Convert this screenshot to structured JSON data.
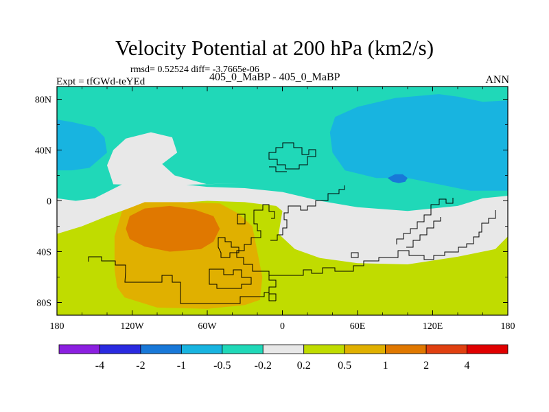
{
  "chart_data": {
    "type": "heatmap",
    "title": "Velocity Potential at 200 hPa (km2/s)",
    "stats": "rmsd= 0.52524 diff= -3.7665e-06",
    "left_label": "Expt = tfGWd-teYEd",
    "center_label": "405_0_MaBP - 405_0_MaBP",
    "right_label": "ANN",
    "xlabel": "",
    "ylabel": "",
    "xlim": [
      -180,
      180
    ],
    "ylim": [
      -90,
      90
    ],
    "x_ticks": [
      {
        "value": -180,
        "label": "180"
      },
      {
        "value": -120,
        "label": "120W"
      },
      {
        "value": -60,
        "label": "60W"
      },
      {
        "value": 0,
        "label": "0"
      },
      {
        "value": 60,
        "label": "60E"
      },
      {
        "value": 120,
        "label": "120E"
      },
      {
        "value": 180,
        "label": "180"
      }
    ],
    "y_ticks": [
      {
        "value": 80,
        "label": "80N"
      },
      {
        "value": 40,
        "label": "40N"
      },
      {
        "value": 0,
        "label": "0"
      },
      {
        "value": -40,
        "label": "40S"
      },
      {
        "value": -80,
        "label": "80S"
      }
    ],
    "colorbar": {
      "levels": [
        "-4",
        "-2",
        "-1",
        "-0.5",
        "-0.2",
        "0.2",
        "0.5",
        "1",
        "2",
        "4"
      ],
      "colors": [
        "#8b1fe0",
        "#2a2ae0",
        "#1878d8",
        "#18b4e0",
        "#20d8b8",
        "#e8e8e8",
        "#c0dc00",
        "#e0b000",
        "#e07800",
        "#e04010",
        "#e00000"
      ]
    },
    "regions": [
      {
        "name": "background",
        "range": "-0.2 to 0.2",
        "color": "#e8e8e8",
        "points": [
          [
            -180,
            90
          ],
          [
            180,
            90
          ],
          [
            180,
            -90
          ],
          [
            -180,
            -90
          ]
        ]
      },
      {
        "name": "northern-teal-band",
        "range": "-0.5 to -0.2",
        "color": "#20d8b8",
        "points": [
          [
            -180,
            90
          ],
          [
            180,
            90
          ],
          [
            180,
            4
          ],
          [
            160,
            2
          ],
          [
            140,
            -4
          ],
          [
            100,
            -8
          ],
          [
            60,
            -5
          ],
          [
            30,
            0
          ],
          [
            0,
            7
          ],
          [
            -30,
            10
          ],
          [
            -60,
            11
          ],
          [
            -90,
            14
          ],
          [
            -120,
            17
          ],
          [
            -150,
            2
          ],
          [
            -165,
            0
          ],
          [
            -180,
            2
          ]
        ]
      },
      {
        "name": "northern-white-tongue",
        "range": "-0.2 to 0.2",
        "color": "#e8e8e8",
        "points": [
          [
            -135,
            40
          ],
          [
            -125,
            49
          ],
          [
            -105,
            54
          ],
          [
            -88,
            50
          ],
          [
            -84,
            38
          ],
          [
            -96,
            29
          ],
          [
            -86,
            20
          ],
          [
            -60,
            13
          ],
          [
            -30,
            14
          ],
          [
            -100,
            12
          ],
          [
            -135,
            13
          ],
          [
            -140,
            28
          ]
        ]
      },
      {
        "name": "cyan-west",
        "range": "-1 to -0.5",
        "color": "#18b4e0",
        "points": [
          [
            -180,
            64
          ],
          [
            -168,
            62
          ],
          [
            -150,
            58
          ],
          [
            -142,
            50
          ],
          [
            -140,
            38
          ],
          [
            -154,
            26
          ],
          [
            -168,
            24
          ],
          [
            -180,
            24
          ]
        ]
      },
      {
        "name": "cyan-east",
        "range": "-1 to -0.5",
        "color": "#18b4e0",
        "points": [
          [
            42,
            66
          ],
          [
            60,
            74
          ],
          [
            90,
            81
          ],
          [
            125,
            84
          ],
          [
            140,
            82
          ],
          [
            160,
            78
          ],
          [
            180,
            79
          ],
          [
            180,
            8
          ],
          [
            150,
            8
          ],
          [
            120,
            14
          ],
          [
            100,
            18
          ],
          [
            75,
            18
          ],
          [
            50,
            24
          ],
          [
            40,
            38
          ],
          [
            38,
            54
          ]
        ]
      },
      {
        "name": "blue-spot",
        "range": "-2 to -1",
        "color": "#1878d8",
        "points": [
          [
            84,
            18
          ],
          [
            88,
            15
          ],
          [
            93,
            14
          ],
          [
            98,
            15
          ],
          [
            100,
            18
          ],
          [
            96,
            21
          ],
          [
            90,
            21
          ]
        ]
      },
      {
        "name": "southern-green",
        "range": "0.2 to 0.5",
        "color": "#c0dc00",
        "points": [
          [
            -180,
            -26
          ],
          [
            -160,
            -20
          ],
          [
            -140,
            -12
          ],
          [
            -120,
            -5
          ],
          [
            -90,
            -2
          ],
          [
            -60,
            0
          ],
          [
            -30,
            -1
          ],
          [
            -5,
            -4
          ],
          [
            0,
            -8
          ],
          [
            -3,
            -26
          ],
          [
            10,
            -38
          ],
          [
            30,
            -45
          ],
          [
            60,
            -49
          ],
          [
            100,
            -50
          ],
          [
            140,
            -44
          ],
          [
            170,
            -38
          ],
          [
            180,
            -28
          ],
          [
            180,
            -90
          ],
          [
            -180,
            -90
          ]
        ]
      },
      {
        "name": "orange-core",
        "range": "0.5 to 1",
        "color": "#e0b000",
        "points": [
          [
            -134,
            -54
          ],
          [
            -134,
            -28
          ],
          [
            -128,
            -8
          ],
          [
            -110,
            -1
          ],
          [
            -80,
            -1
          ],
          [
            -50,
            -2
          ],
          [
            -35,
            -10
          ],
          [
            -24,
            -20
          ],
          [
            -20,
            -40
          ],
          [
            -16,
            -60
          ],
          [
            -18,
            -78
          ],
          [
            -30,
            -82
          ],
          [
            -60,
            -85
          ],
          [
            -100,
            -84
          ],
          [
            -126,
            -76
          ],
          [
            -132,
            -68
          ]
        ]
      },
      {
        "name": "dark-orange-core",
        "range": "1 to 2",
        "color": "#e07800",
        "points": [
          [
            -125,
            -22
          ],
          [
            -122,
            -12
          ],
          [
            -110,
            -6
          ],
          [
            -90,
            -4
          ],
          [
            -70,
            -7
          ],
          [
            -55,
            -12
          ],
          [
            -50,
            -22
          ],
          [
            -55,
            -32
          ],
          [
            -65,
            -38
          ],
          [
            -90,
            -40
          ],
          [
            -110,
            -36
          ],
          [
            -122,
            -30
          ]
        ]
      }
    ]
  }
}
